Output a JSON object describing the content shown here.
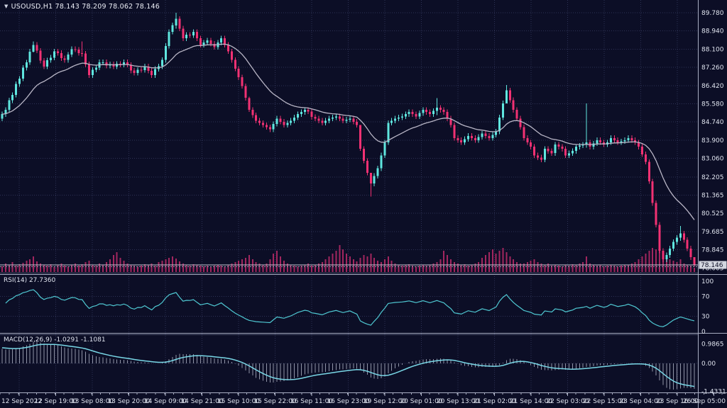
{
  "header": {
    "title": "USOUSD,H1  78.143 78.209 78.062 78.146"
  },
  "panels": {
    "rsi_label": "RSI(14) 27.7360",
    "macd_label": "MACD(12,26,9) -1.0291 -1.1081"
  },
  "colors": {
    "background": "#0c0e26",
    "grid": "#565d8f",
    "bull": "#5fe6df",
    "bear": "#f23173",
    "volume": "#a2265f",
    "ma_line": "#b9b6c6",
    "rsi_line": "#4fc8d2",
    "macd_signal": "#79d7e6",
    "macd_hist": "#c9cdde",
    "axis_text": "#dfe3ee",
    "separator": "#a8adc2",
    "price_line": "#c5c9d6",
    "bid_line": "#9095ab",
    "tag_bg": "#d4d7e0",
    "tag_text": "#101228"
  },
  "chart_data": {
    "type": "candlestick+indicators",
    "symbol": "USOUSD",
    "timeframe": "H1",
    "quote": {
      "open": "78.143",
      "high": "78.209",
      "low": "78.062",
      "close": "78.146"
    },
    "current_price": 78.146,
    "current_price_label": "78.146",
    "bid_line": 78.062,
    "price_axis": {
      "labels": [
        "89.780",
        "88.940",
        "88.100",
        "87.260",
        "86.420",
        "85.580",
        "84.740",
        "83.900",
        "83.060",
        "82.205",
        "81.365",
        "80.525",
        "79.685",
        "78.845",
        "78.005"
      ],
      "values": [
        89.78,
        88.94,
        88.1,
        87.26,
        86.42,
        85.58,
        84.74,
        83.9,
        83.06,
        82.205,
        81.365,
        80.525,
        79.685,
        78.845,
        78.005
      ]
    },
    "time_axis": [
      "12 Sep 2022",
      "12 Sep 19:00",
      "13 Sep 08:00",
      "13 Sep 20:00",
      "14 Sep 09:00",
      "14 Sep 21:00",
      "15 Sep 10:00",
      "15 Sep 22:00",
      "16 Sep 11:00",
      "16 Sep 23:00",
      "19 Sep 12:00",
      "20 Sep 01:00",
      "20 Sep 13:00",
      "21 Sep 02:00",
      "21 Sep 14:00",
      "22 Sep 03:00",
      "22 Sep 15:00",
      "23 Sep 04:00",
      "23 Sep 16:00",
      "26 Sep 05:00"
    ],
    "candles": {
      "first_open": 84.9,
      "default_wick": 0.12,
      "closes": [
        85.1,
        85.3,
        85.74,
        85.99,
        86.49,
        86.74,
        87.24,
        87.49,
        87.99,
        88.3,
        88.03,
        87.57,
        87.3,
        87.59,
        87.71,
        88.0,
        87.92,
        87.68,
        87.6,
        87.85,
        88.1,
        88.08,
        87.92,
        87.9,
        87.4,
        86.9,
        87.15,
        87.25,
        87.5,
        87.5,
        87.34,
        87.41,
        87.3,
        87.42,
        87.38,
        87.5,
        87.38,
        87.11,
        87.0,
        87.15,
        87.14,
        87.3,
        87.1,
        86.9,
        87.19,
        87.31,
        87.6,
        88.25,
        88.9,
        89.2,
        89.5,
        89.05,
        88.6,
        88.76,
        88.74,
        88.9,
        88.6,
        88.3,
        88.4,
        88.5,
        88.35,
        88.2,
        88.4,
        88.6,
        88.3,
        88.0,
        87.6,
        87.2,
        86.8,
        86.4,
        85.85,
        85.3,
        85.05,
        84.8,
        84.7,
        84.6,
        84.5,
        84.4,
        84.65,
        84.9,
        84.75,
        84.6,
        84.7,
        84.8,
        84.95,
        85.1,
        85.2,
        85.3,
        85.22,
        84.97,
        84.9,
        84.8,
        84.7,
        84.8,
        84.9,
        84.95,
        85.0,
        84.9,
        84.8,
        84.85,
        84.9,
        84.75,
        84.6,
        83.5,
        82.95,
        82.4,
        81.9,
        82.25,
        82.6,
        83.2,
        83.8,
        84.7,
        84.8,
        84.9,
        84.95,
        85.0,
        85.1,
        85.2,
        85.1,
        85.0,
        85.15,
        85.3,
        85.2,
        85.1,
        85.25,
        85.4,
        85.3,
        85.2,
        84.9,
        84.6,
        84.0,
        83.9,
        83.8,
        83.95,
        84.1,
        84.0,
        83.9,
        84.05,
        84.2,
        84.1,
        84.0,
        84.15,
        84.3,
        84.95,
        85.6,
        86.2,
        85.75,
        85.3,
        84.9,
        84.5,
        84.0,
        83.8,
        83.6,
        83.2,
        83.1,
        83.0,
        83.5,
        83.4,
        83.3,
        83.7,
        83.6,
        83.5,
        83.2,
        83.3,
        83.4,
        83.6,
        83.65,
        83.7,
        83.8,
        83.6,
        83.75,
        83.9,
        83.8,
        83.7,
        83.8,
        84.0,
        83.9,
        83.8,
        83.85,
        83.9,
        84.0,
        83.9,
        83.8,
        83.6,
        83.25,
        82.9,
        82.0,
        81.0,
        80.0,
        78.8,
        78.4,
        78.6,
        78.9,
        79.2,
        79.4,
        79.6,
        79.3,
        78.9,
        78.5,
        78.15
      ],
      "wick_overrides": {
        "9": [
          88.45,
          87.95
        ],
        "23": [
          88.45,
          87.75
        ],
        "50": [
          89.78,
          89.05
        ],
        "71": [
          85.9,
          85.2
        ],
        "103": [
          84.6,
          83.4
        ],
        "106": [
          82.35,
          81.3
        ],
        "125": [
          85.85,
          85.05
        ],
        "145": [
          86.45,
          85.65
        ],
        "168": [
          85.6,
          83.55
        ],
        "195": [
          79.95,
          79.25
        ],
        "199": [
          78.3,
          78.05
        ]
      }
    },
    "volume": [
      8,
      12,
      10,
      14,
      9,
      11,
      13,
      16,
      18,
      22,
      15,
      12,
      10,
      9,
      11,
      8,
      10,
      12,
      9,
      8,
      10,
      12,
      9,
      11,
      14,
      16,
      10,
      9,
      12,
      10,
      14,
      18,
      24,
      28,
      20,
      16,
      12,
      10,
      9,
      8,
      9,
      11,
      10,
      12,
      9,
      14,
      16,
      18,
      20,
      22,
      19,
      15,
      12,
      10,
      9,
      11,
      10,
      9,
      8,
      9,
      8,
      9,
      10,
      9,
      8,
      10,
      12,
      14,
      16,
      18,
      20,
      24,
      18,
      14,
      12,
      10,
      12,
      18,
      26,
      30,
      22,
      16,
      12,
      10,
      9,
      8,
      9,
      10,
      12,
      9,
      10,
      12,
      14,
      18,
      22,
      26,
      30,
      38,
      32,
      26,
      22,
      18,
      15,
      20,
      24,
      22,
      26,
      20,
      16,
      14,
      18,
      22,
      16,
      12,
      10,
      9,
      10,
      11,
      9,
      8,
      9,
      10,
      9,
      10,
      12,
      14,
      18,
      30,
      24,
      18,
      14,
      12,
      10,
      11,
      9,
      10,
      12,
      14,
      20,
      24,
      28,
      32,
      26,
      30,
      34,
      28,
      22,
      18,
      14,
      12,
      12,
      14,
      16,
      18,
      14,
      12,
      10,
      12,
      9,
      10,
      9,
      8,
      10,
      9,
      11,
      10,
      12,
      14,
      22,
      12,
      10,
      9,
      10,
      8,
      9,
      10,
      9,
      8,
      9,
      10,
      10,
      12,
      14,
      18,
      22,
      26,
      30,
      34,
      32,
      30,
      26,
      22,
      18,
      16,
      14,
      18,
      12,
      10,
      9,
      6
    ],
    "ma": {
      "type": "EMA",
      "period": 20
    },
    "rsi": {
      "period": 14,
      "value": "27.7360",
      "levels": [
        70,
        30
      ],
      "axis": {
        "labels": [
          "100",
          "70",
          "30",
          "0"
        ],
        "values": [
          100,
          70,
          30,
          0
        ]
      }
    },
    "macd": {
      "fast": 12,
      "slow": 26,
      "signal": 9,
      "values": [
        "-1.0291",
        "-1.1081"
      ],
      "axis": {
        "labels": [
          "0.9865",
          "0.00",
          "-1.4331"
        ],
        "values": [
          0.9865,
          0,
          -1.4331
        ]
      }
    }
  }
}
